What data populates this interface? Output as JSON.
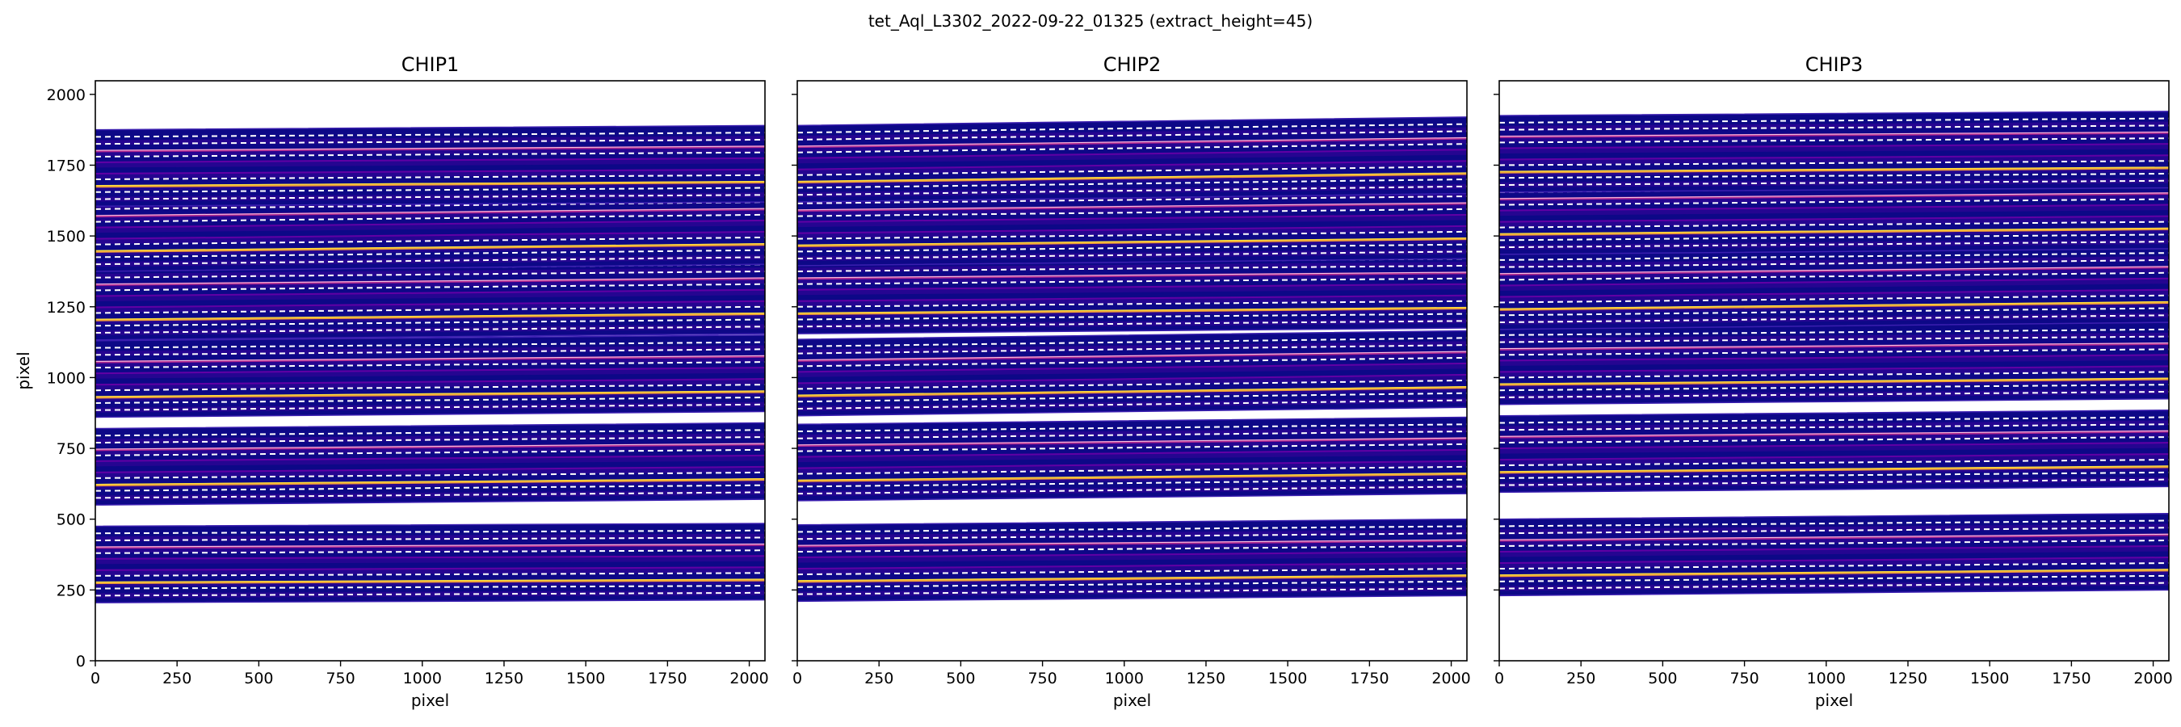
{
  "figure": {
    "suptitle": "tet_Aql_L3302_2022-09-22_01325  (extract_height=45)"
  },
  "colors": {
    "background": "#0d0887",
    "trace_dark": "#2c0594",
    "trace_mid": "#b12a90",
    "trace_bright": "#f0a039",
    "trace_peak": "#fce640",
    "dashed_lines": "#ffffff",
    "axes": "#000000"
  },
  "chart_data": [
    {
      "type": "heatmap",
      "title": "CHIP1",
      "xlabel": "pixel",
      "ylabel": "pixel",
      "xlim": [
        0,
        2048
      ],
      "ylim": [
        0,
        2048
      ],
      "xticks": [
        "0",
        "250",
        "500",
        "750",
        "1000",
        "1250",
        "1500",
        "1750",
        "2000"
      ],
      "yticks": [
        "0",
        "250",
        "500",
        "750",
        "1000",
        "1250",
        "1500",
        "1750",
        "2000"
      ],
      "show_yticklabels": true,
      "colormap": "plasma",
      "orders": [
        {
          "y_left": 340,
          "y_right": 350
        },
        {
          "y_left": 685,
          "y_right": 705
        },
        {
          "y_left": 995,
          "y_right": 1015
        },
        {
          "y_left": 1268,
          "y_right": 1290
        },
        {
          "y_left": 1510,
          "y_right": 1535
        },
        {
          "y_left": 1740,
          "y_right": 1755
        }
      ]
    },
    {
      "type": "heatmap",
      "title": "CHIP2",
      "xlabel": "pixel",
      "ylabel": "",
      "xlim": [
        0,
        2048
      ],
      "ylim": [
        0,
        2048
      ],
      "xticks": [
        "0",
        "250",
        "500",
        "750",
        "1000",
        "1250",
        "1500",
        "1750",
        "2000"
      ],
      "yticks": [],
      "show_yticklabels": false,
      "colormap": "plasma",
      "orders": [
        {
          "y_left": 345,
          "y_right": 365
        },
        {
          "y_left": 700,
          "y_right": 725
        },
        {
          "y_left": 1000,
          "y_right": 1030
        },
        {
          "y_left": 1290,
          "y_right": 1310
        },
        {
          "y_left": 1530,
          "y_right": 1555
        },
        {
          "y_left": 1755,
          "y_right": 1785
        }
      ]
    },
    {
      "type": "heatmap",
      "title": "CHIP3",
      "xlabel": "pixel",
      "ylabel": "",
      "xlim": [
        0,
        2048
      ],
      "ylim": [
        0,
        2048
      ],
      "xticks": [
        "0",
        "250",
        "500",
        "750",
        "1000",
        "1250",
        "1500",
        "1750",
        "2000"
      ],
      "yticks": [],
      "show_yticklabels": false,
      "colormap": "plasma",
      "orders": [
        {
          "y_left": 365,
          "y_right": 385
        },
        {
          "y_left": 730,
          "y_right": 750
        },
        {
          "y_left": 1040,
          "y_right": 1060
        },
        {
          "y_left": 1305,
          "y_right": 1330
        },
        {
          "y_left": 1570,
          "y_right": 1590
        },
        {
          "y_left": 1790,
          "y_right": 1805
        }
      ]
    }
  ]
}
